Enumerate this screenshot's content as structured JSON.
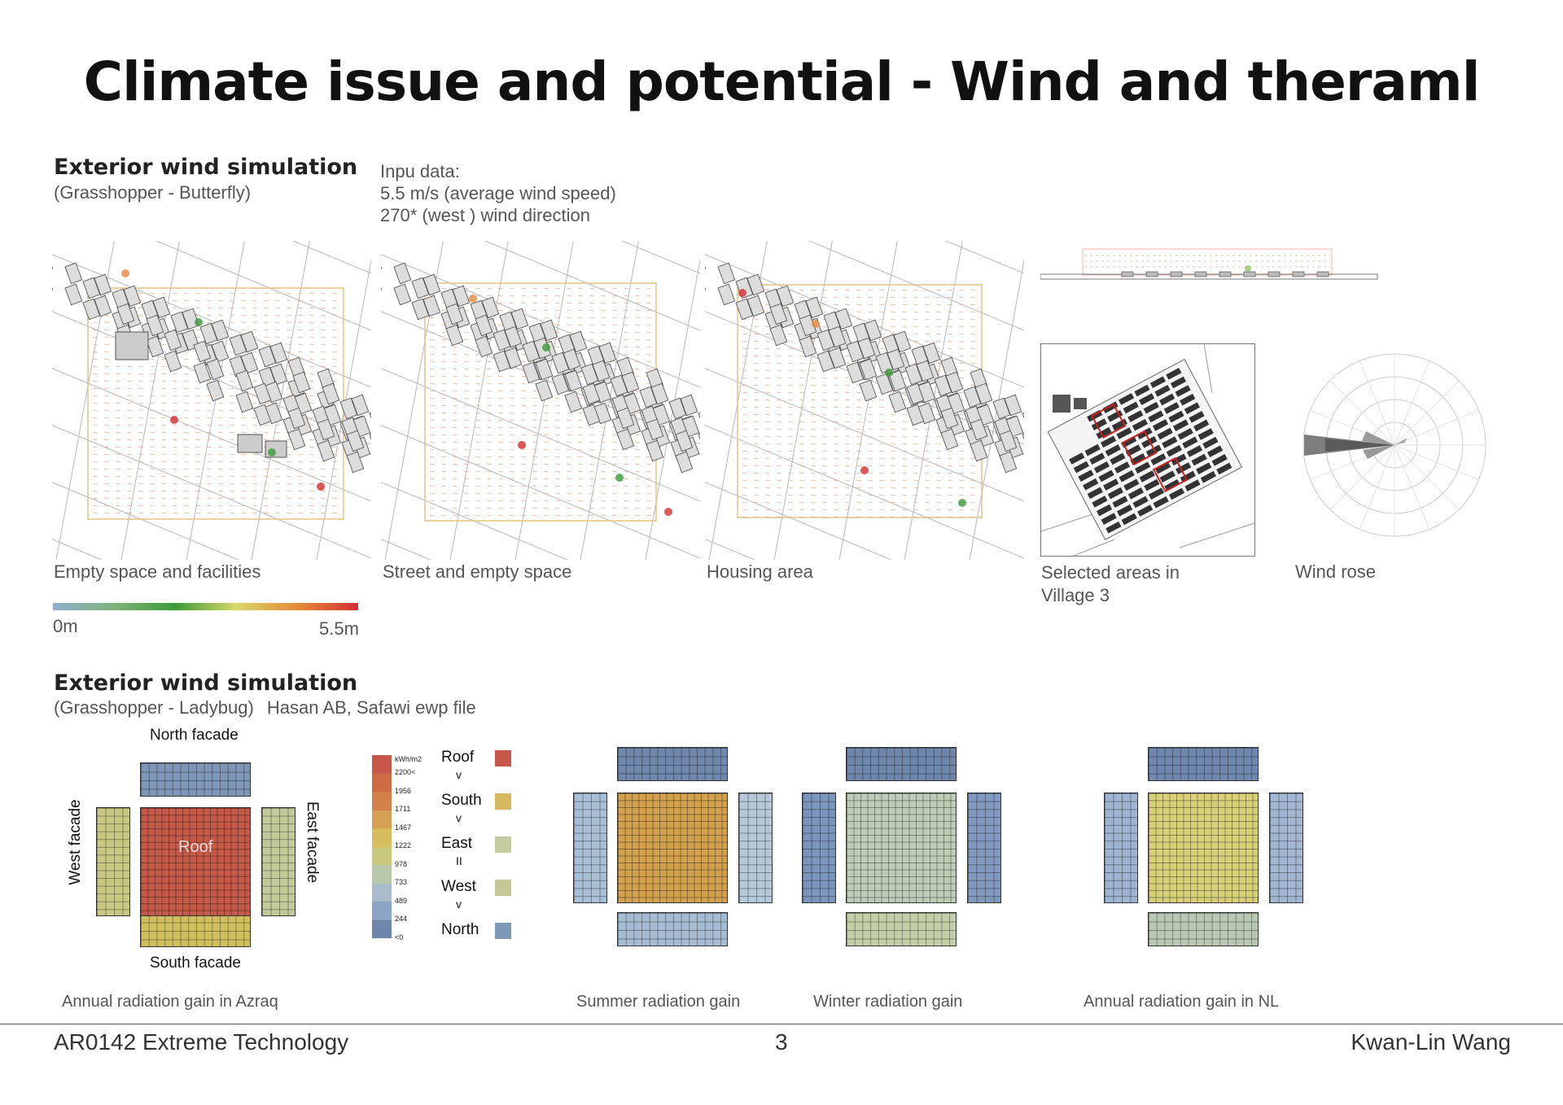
{
  "title": "Climate issue and potential - Wind and theraml",
  "wind_section": {
    "title": "Exterior wind simulation",
    "subtitle": "(Grasshopper - Butterfly)",
    "input_lines": [
      "Inpu data:",
      "5.5 m/s (average wind speed)",
      "270* (west ) wind direction"
    ],
    "panels": [
      {
        "caption": "Empty space and facilities"
      },
      {
        "caption": "Street and empty space"
      },
      {
        "caption": "Housing area"
      }
    ],
    "selected_caption": [
      "Selected areas in",
      "Village 3"
    ],
    "windrose_caption": "Wind rose",
    "scale": {
      "min_label": "0m",
      "max_label": "5.5m",
      "colors": [
        "#8fb0cf",
        "#7fb37a",
        "#3d9a3a",
        "#d8d86a",
        "#e58a3a",
        "#d23030"
      ]
    }
  },
  "radiation_section": {
    "title": "Exterior wind simulation",
    "subtitle": "(Grasshopper - Ladybug)",
    "subtitle_extra": "Hasan AB, Safawi ewp file",
    "facade_labels": {
      "north": "North facade",
      "south": "South facade",
      "west": "West facade",
      "east": "East facade",
      "roof": "Roof"
    },
    "legend": {
      "unit": "kWh/m2",
      "ticks": [
        "2200<",
        "1956",
        "1711",
        "1467",
        "1222",
        "978",
        "733",
        "489",
        "244",
        "<0"
      ],
      "colors": [
        "#c6574a",
        "#cd6b45",
        "#d2814a",
        "#d6a052",
        "#d8bd5e",
        "#c9c97d",
        "#b8c8a8",
        "#a9bccc",
        "#8ba3c5",
        "#6f86ab"
      ]
    },
    "ranking": [
      {
        "label": "Roof",
        "color": "#c6574a"
      },
      {
        "sep": "v"
      },
      {
        "label": "South",
        "color": "#d6b85e"
      },
      {
        "sep": "v"
      },
      {
        "label": "East",
        "color": "#c5cba0"
      },
      {
        "sep": "II"
      },
      {
        "label": "West",
        "color": "#c5c896"
      },
      {
        "sep": "v"
      },
      {
        "label": "North",
        "color": "#7f98b8"
      }
    ],
    "diagrams": [
      {
        "caption": "Annual radiation gain in Azraq",
        "colors": {
          "roof": "#c45a48",
          "north": "#7e96b8",
          "south": "#d0bf5e",
          "west": "#c8c882",
          "east": "#c2ca9a"
        }
      },
      {
        "caption": "Summer radiation gain",
        "colors": {
          "roof": "#d2a14e",
          "north": "#6f88ac",
          "south": "#a7bcd2",
          "west": "#a9bfd6",
          "east": "#b5c8d8"
        }
      },
      {
        "caption": "Winter radiation gain",
        "colors": {
          "roof": "#bdcdb5",
          "north": "#6f86ab",
          "south": "#c3cfa8",
          "west": "#7c95bc",
          "east": "#8199be"
        }
      },
      {
        "caption": "Annual radiation gain in NL",
        "colors": {
          "roof": "#d8cf79",
          "north": "#7088ad",
          "south": "#b9c8b3",
          "west": "#9fb4d0",
          "east": "#a3b7d2"
        }
      }
    ]
  },
  "footer": {
    "left": "AR0142 Extreme Technology",
    "center": "3",
    "right": "Kwan-Lin Wang"
  }
}
